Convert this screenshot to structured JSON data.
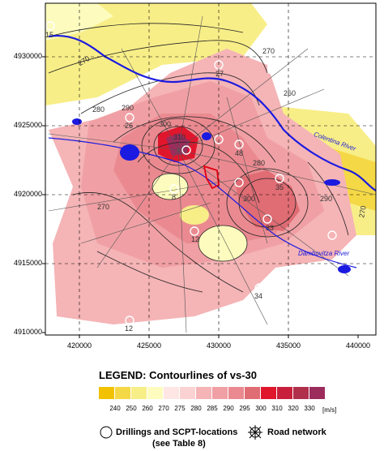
{
  "map": {
    "y_ticks": [
      "4930000",
      "4925000",
      "4920000",
      "4915000",
      "4910000"
    ],
    "x_ticks": [
      "420000",
      "425000",
      "430000",
      "435000",
      "440000"
    ],
    "rivers": {
      "colentina": "Colentina River",
      "dambovitza": "Dambovitza River"
    },
    "contour_labels": [
      "270",
      "280",
      "290",
      "300",
      "310",
      "270",
      "260",
      "280",
      "270",
      "300",
      "290",
      "270"
    ],
    "point_labels": [
      "15",
      "27",
      "26",
      "48",
      "35",
      "33",
      "8",
      "12",
      "34",
      "12"
    ]
  },
  "legend": {
    "title": "LEGEND:  Contourlines of vs-30",
    "scale_values": [
      "240",
      "250",
      "260",
      "270",
      "275",
      "280",
      "285",
      "290",
      "295",
      "300",
      "310",
      "320",
      "330"
    ],
    "unit": "[m/s]",
    "scale_colors": [
      "#f2c200",
      "#f5d845",
      "#f8ee88",
      "#fdfcbe",
      "#fde6e4",
      "#fbd2d2",
      "#f5b4b6",
      "#f0a0a4",
      "#ea8a90",
      "#e06c74",
      "#e0162c",
      "#c8203c",
      "#b0304c",
      "#9c2c5c"
    ],
    "drillings_label": "Drillings and SCPT-locations",
    "drillings_sub": "(see Table 8)",
    "road_label": "Road network"
  }
}
